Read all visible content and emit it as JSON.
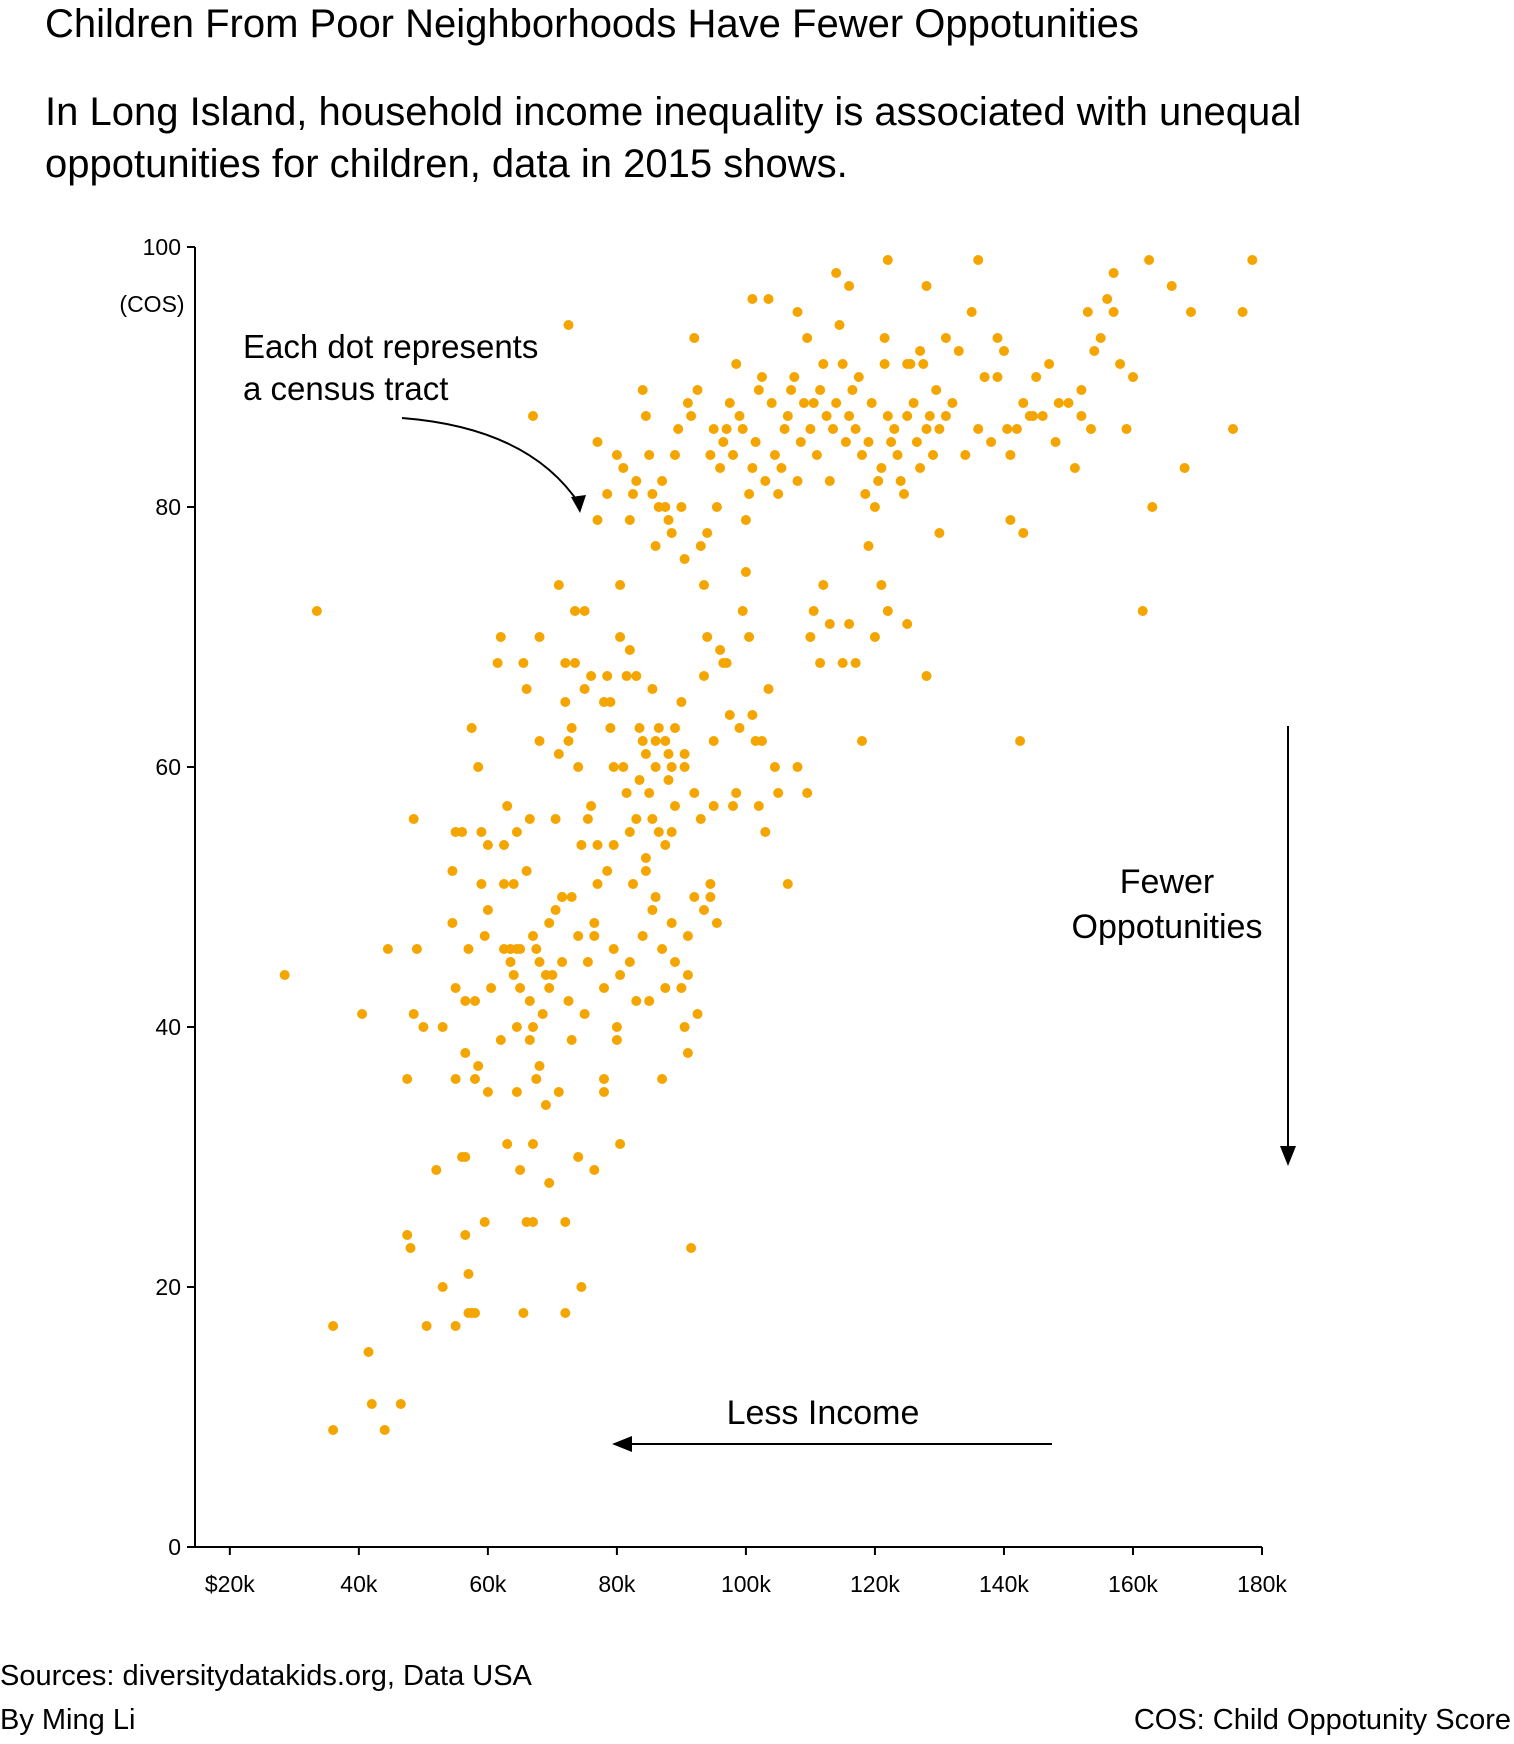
{
  "title": "Children From Poor Neighborhoods Have Fewer Oppotunities",
  "subtitle": "In Long Island, household income inequality is associated with unequal oppotunities for children, data in 2015 shows.",
  "annotations": {
    "dot_note_line1": "Each dot represents",
    "dot_note_line2": "a census tract",
    "fewer_line1": "Fewer",
    "fewer_line2": "Oppotunities",
    "less_income": "Less Income"
  },
  "footer": {
    "sources": "Sources: diversitydatakids.org, Data USA",
    "byline": "By Ming Li",
    "cos_note": "COS: Child Oppotunity Score"
  },
  "colors": {
    "dot": "#F5A500",
    "axis": "#000000"
  },
  "chart_data": {
    "type": "scatter",
    "xlabel": "",
    "ylabel": "(COS)",
    "xlim": [
      14600,
      180000
    ],
    "ylim": [
      0,
      100
    ],
    "xticks": [
      20000,
      40000,
      60000,
      80000,
      100000,
      120000,
      140000,
      160000,
      180000
    ],
    "xtick_labels": [
      "$20k",
      "40k",
      "60k",
      "80k",
      "100k",
      "120k",
      "140k",
      "160k",
      "180k"
    ],
    "yticks": [
      0,
      20,
      40,
      60,
      80,
      100
    ],
    "ytick_labels": [
      "0",
      "20",
      "40",
      "60",
      "80",
      "100"
    ],
    "grid": false,
    "legend": "none",
    "points": [
      [
        28500,
        44
      ],
      [
        33500,
        72
      ],
      [
        36000,
        17
      ],
      [
        36000,
        9
      ],
      [
        40500,
        41
      ],
      [
        41500,
        15
      ],
      [
        42000,
        11
      ],
      [
        44000,
        9
      ],
      [
        44500,
        46
      ],
      [
        46500,
        11
      ],
      [
        47500,
        36
      ],
      [
        47500,
        24
      ],
      [
        48000,
        23
      ],
      [
        48500,
        56
      ],
      [
        49000,
        46
      ],
      [
        50500,
        17
      ],
      [
        52000,
        29
      ],
      [
        53000,
        20
      ],
      [
        53000,
        40
      ],
      [
        54500,
        52
      ],
      [
        54500,
        48
      ],
      [
        55000,
        43
      ],
      [
        55000,
        36
      ],
      [
        55000,
        17
      ],
      [
        56000,
        30
      ],
      [
        56000,
        55
      ],
      [
        56500,
        24
      ],
      [
        56500,
        38
      ],
      [
        56500,
        30
      ],
      [
        57000,
        21
      ],
      [
        57000,
        18
      ],
      [
        57000,
        46
      ],
      [
        57500,
        63
      ],
      [
        57500,
        18
      ],
      [
        58000,
        42
      ],
      [
        58000,
        36
      ],
      [
        58000,
        18
      ],
      [
        58500,
        60
      ],
      [
        58500,
        37
      ],
      [
        59000,
        55
      ],
      [
        59000,
        51
      ],
      [
        59500,
        25
      ],
      [
        59500,
        47
      ],
      [
        60000,
        54
      ],
      [
        60000,
        49
      ],
      [
        60500,
        43
      ],
      [
        61500,
        68
      ],
      [
        62000,
        70
      ],
      [
        62000,
        39
      ],
      [
        62500,
        54
      ],
      [
        62500,
        51
      ],
      [
        63000,
        31
      ],
      [
        63500,
        45
      ],
      [
        63500,
        46
      ],
      [
        64000,
        51
      ],
      [
        64000,
        44
      ],
      [
        64500,
        55
      ],
      [
        64500,
        40
      ],
      [
        64500,
        35
      ],
      [
        64500,
        46
      ],
      [
        65000,
        29
      ],
      [
        65000,
        46
      ],
      [
        65500,
        18
      ],
      [
        65500,
        68
      ],
      [
        66000,
        66
      ],
      [
        66000,
        25
      ],
      [
        66500,
        56
      ],
      [
        66500,
        42
      ],
      [
        66500,
        39
      ],
      [
        67000,
        25
      ],
      [
        67000,
        47
      ],
      [
        67000,
        40
      ],
      [
        67000,
        31
      ],
      [
        67500,
        36
      ],
      [
        67500,
        46
      ],
      [
        68000,
        70
      ],
      [
        68000,
        62
      ],
      [
        68000,
        45
      ],
      [
        68500,
        41
      ],
      [
        69000,
        44
      ],
      [
        69000,
        34
      ],
      [
        69500,
        28
      ],
      [
        69500,
        43
      ],
      [
        70500,
        49
      ],
      [
        70500,
        56
      ],
      [
        71000,
        74
      ],
      [
        71000,
        61
      ],
      [
        71000,
        35
      ],
      [
        71500,
        50
      ],
      [
        71500,
        45
      ],
      [
        72000,
        65
      ],
      [
        72000,
        68
      ],
      [
        72000,
        25
      ],
      [
        72000,
        18
      ],
      [
        72500,
        42
      ],
      [
        72500,
        62
      ],
      [
        73000,
        39
      ],
      [
        73000,
        63
      ],
      [
        73500,
        68
      ],
      [
        73500,
        72
      ],
      [
        74000,
        30
      ],
      [
        74000,
        60
      ],
      [
        74500,
        54
      ],
      [
        74500,
        20
      ],
      [
        75000,
        66
      ],
      [
        75000,
        41
      ],
      [
        75000,
        72
      ],
      [
        75500,
        56
      ],
      [
        76000,
        67
      ],
      [
        76000,
        57
      ],
      [
        76500,
        29
      ],
      [
        76500,
        47
      ],
      [
        77000,
        54
      ],
      [
        77000,
        51
      ],
      [
        78000,
        36
      ],
      [
        78000,
        35
      ],
      [
        78000,
        65
      ],
      [
        78500,
        52
      ],
      [
        78500,
        67
      ],
      [
        79000,
        63
      ],
      [
        79000,
        65
      ],
      [
        79500,
        54
      ],
      [
        79500,
        60
      ],
      [
        80000,
        39
      ],
      [
        80000,
        40
      ],
      [
        80500,
        70
      ],
      [
        80500,
        74
      ],
      [
        80500,
        31
      ],
      [
        81000,
        60
      ],
      [
        81500,
        58
      ],
      [
        81500,
        67
      ],
      [
        82000,
        69
      ],
      [
        82000,
        55
      ],
      [
        82500,
        51
      ],
      [
        83000,
        56
      ],
      [
        83000,
        67
      ],
      [
        83500,
        59
      ],
      [
        83500,
        63
      ],
      [
        84000,
        62
      ],
      [
        84000,
        47
      ],
      [
        84500,
        61
      ],
      [
        84500,
        53
      ],
      [
        85000,
        42
      ],
      [
        85000,
        58
      ],
      [
        85500,
        66
      ],
      [
        85500,
        56
      ],
      [
        86000,
        60
      ],
      [
        86000,
        62
      ],
      [
        86500,
        63
      ],
      [
        86500,
        55
      ],
      [
        87000,
        36
      ],
      [
        87000,
        46
      ],
      [
        87500,
        62
      ],
      [
        87500,
        54
      ],
      [
        88000,
        59
      ],
      [
        88000,
        61
      ],
      [
        88500,
        60
      ],
      [
        88500,
        55
      ],
      [
        89000,
        57
      ],
      [
        89000,
        63
      ],
      [
        90000,
        43
      ],
      [
        90000,
        65
      ],
      [
        90500,
        61
      ],
      [
        90500,
        60
      ],
      [
        91000,
        38
      ],
      [
        91000,
        44
      ],
      [
        91500,
        23
      ],
      [
        92000,
        50
      ],
      [
        92000,
        58
      ],
      [
        93000,
        56
      ],
      [
        93500,
        67
      ],
      [
        94000,
        70
      ],
      [
        94500,
        51
      ],
      [
        94500,
        50
      ],
      [
        95000,
        57
      ],
      [
        95000,
        62
      ],
      [
        96000,
        69
      ],
      [
        96500,
        68
      ],
      [
        97000,
        68
      ],
      [
        97500,
        64
      ],
      [
        98500,
        58
      ],
      [
        98000,
        57
      ],
      [
        99000,
        63
      ],
      [
        99500,
        72
      ],
      [
        100000,
        75
      ],
      [
        100500,
        70
      ],
      [
        101000,
        64
      ],
      [
        101500,
        62
      ],
      [
        102000,
        57
      ],
      [
        102500,
        62
      ],
      [
        103000,
        55
      ],
      [
        103500,
        66
      ],
      [
        104500,
        60
      ],
      [
        105000,
        58
      ],
      [
        106500,
        51
      ],
      [
        108000,
        60
      ],
      [
        110000,
        70
      ],
      [
        109500,
        58
      ],
      [
        110500,
        72
      ],
      [
        111500,
        68
      ],
      [
        112000,
        74
      ],
      [
        113000,
        71
      ],
      [
        115000,
        68
      ],
      [
        116000,
        71
      ],
      [
        117000,
        68
      ],
      [
        118000,
        62
      ],
      [
        119000,
        77
      ],
      [
        120000,
        70
      ],
      [
        121000,
        74
      ],
      [
        122000,
        72
      ],
      [
        125000,
        71
      ],
      [
        128000,
        67
      ],
      [
        130000,
        78
      ],
      [
        142500,
        62
      ],
      [
        143000,
        78
      ],
      [
        141000,
        79
      ],
      [
        161500,
        72
      ],
      [
        163000,
        80
      ],
      [
        48500,
        41
      ],
      [
        50000,
        40
      ],
      [
        72500,
        94
      ],
      [
        67000,
        87
      ],
      [
        77000,
        79
      ],
      [
        77000,
        85
      ],
      [
        78500,
        81
      ],
      [
        80000,
        84
      ],
      [
        81000,
        83
      ],
      [
        82000,
        79
      ],
      [
        82500,
        81
      ],
      [
        83000,
        82
      ],
      [
        84000,
        89
      ],
      [
        84500,
        87
      ],
      [
        85000,
        84
      ],
      [
        85500,
        81
      ],
      [
        86000,
        77
      ],
      [
        86500,
        80
      ],
      [
        87000,
        82
      ],
      [
        87500,
        80
      ],
      [
        88000,
        79
      ],
      [
        88500,
        78
      ],
      [
        89000,
        84
      ],
      [
        89500,
        86
      ],
      [
        90000,
        80
      ],
      [
        90500,
        76
      ],
      [
        91000,
        88
      ],
      [
        91500,
        87
      ],
      [
        92000,
        93
      ],
      [
        92500,
        89
      ],
      [
        93000,
        77
      ],
      [
        93500,
        74
      ],
      [
        94000,
        78
      ],
      [
        94500,
        84
      ],
      [
        95000,
        86
      ],
      [
        95500,
        80
      ],
      [
        96000,
        83
      ],
      [
        96500,
        85
      ],
      [
        97000,
        86
      ],
      [
        97500,
        88
      ],
      [
        98000,
        84
      ],
      [
        98500,
        91
      ],
      [
        99000,
        87
      ],
      [
        99500,
        86
      ],
      [
        100000,
        79
      ],
      [
        100500,
        81
      ],
      [
        101000,
        83
      ],
      [
        101500,
        85
      ],
      [
        102000,
        89
      ],
      [
        102500,
        90
      ],
      [
        103000,
        82
      ],
      [
        103500,
        96
      ],
      [
        104000,
        88
      ],
      [
        104500,
        84
      ],
      [
        105000,
        81
      ],
      [
        105500,
        83
      ],
      [
        106000,
        86
      ],
      [
        106500,
        87
      ],
      [
        107000,
        89
      ],
      [
        107500,
        90
      ],
      [
        108000,
        82
      ],
      [
        108500,
        85
      ],
      [
        109000,
        88
      ],
      [
        109500,
        93
      ],
      [
        110000,
        86
      ],
      [
        110500,
        88
      ],
      [
        111000,
        84
      ],
      [
        111500,
        89
      ],
      [
        112000,
        91
      ],
      [
        112500,
        87
      ],
      [
        113000,
        82
      ],
      [
        113500,
        86
      ],
      [
        114000,
        88
      ],
      [
        114500,
        94
      ],
      [
        115000,
        91
      ],
      [
        115500,
        85
      ],
      [
        116000,
        87
      ],
      [
        116500,
        89
      ],
      [
        117000,
        86
      ],
      [
        117500,
        90
      ],
      [
        118000,
        84
      ],
      [
        118500,
        81
      ],
      [
        119000,
        85
      ],
      [
        119500,
        88
      ],
      [
        120000,
        80
      ],
      [
        120500,
        82
      ],
      [
        121000,
        83
      ],
      [
        121500,
        91
      ],
      [
        122000,
        87
      ],
      [
        122500,
        85
      ],
      [
        123000,
        86
      ],
      [
        123500,
        84
      ],
      [
        124000,
        82
      ],
      [
        124500,
        81
      ],
      [
        125000,
        87
      ],
      [
        125500,
        91
      ],
      [
        126000,
        88
      ],
      [
        126500,
        85
      ],
      [
        127000,
        83
      ],
      [
        127500,
        91
      ],
      [
        128000,
        86
      ],
      [
        128500,
        87
      ],
      [
        129000,
        84
      ],
      [
        129500,
        89
      ],
      [
        130000,
        86
      ],
      [
        131000,
        93
      ],
      [
        132000,
        88
      ],
      [
        134000,
        84
      ],
      [
        135000,
        95
      ],
      [
        136000,
        86
      ],
      [
        137000,
        90
      ],
      [
        138000,
        85
      ],
      [
        139000,
        93
      ],
      [
        140000,
        92
      ],
      [
        141000,
        84
      ],
      [
        142000,
        86
      ],
      [
        143000,
        88
      ],
      [
        144000,
        87
      ],
      [
        145000,
        90
      ],
      [
        146000,
        87
      ],
      [
        147000,
        91
      ],
      [
        148000,
        85
      ],
      [
        150000,
        88
      ],
      [
        151000,
        83
      ],
      [
        152000,
        89
      ],
      [
        153000,
        95
      ],
      [
        154000,
        92
      ],
      [
        155000,
        93
      ],
      [
        156000,
        96
      ],
      [
        157000,
        95
      ],
      [
        158000,
        91
      ],
      [
        159000,
        86
      ],
      [
        160000,
        90
      ],
      [
        162500,
        99
      ],
      [
        166000,
        97
      ],
      [
        168000,
        83
      ],
      [
        169000,
        95
      ],
      [
        175500,
        86
      ],
      [
        177000,
        95
      ],
      [
        178500,
        99
      ],
      [
        122000,
        99
      ],
      [
        116000,
        97
      ],
      [
        114000,
        98
      ],
      [
        108000,
        95
      ],
      [
        101000,
        96
      ],
      [
        128000,
        97
      ],
      [
        136000,
        99
      ],
      [
        157000,
        98
      ],
      [
        121500,
        93
      ],
      [
        125000,
        91
      ],
      [
        127000,
        92
      ],
      [
        131000,
        87
      ],
      [
        133000,
        92
      ],
      [
        139000,
        90
      ],
      [
        140500,
        86
      ],
      [
        144500,
        87
      ],
      [
        148500,
        88
      ],
      [
        152000,
        87
      ],
      [
        153500,
        86
      ],
      [
        55000,
        55
      ],
      [
        56500,
        42
      ],
      [
        60000,
        35
      ],
      [
        62500,
        46
      ],
      [
        65000,
        43
      ],
      [
        68000,
        37
      ],
      [
        70000,
        44
      ],
      [
        73000,
        50
      ],
      [
        75500,
        45
      ],
      [
        78000,
        43
      ],
      [
        80500,
        44
      ],
      [
        83000,
        42
      ],
      [
        85500,
        49
      ],
      [
        87500,
        43
      ],
      [
        89000,
        45
      ],
      [
        90500,
        40
      ],
      [
        92500,
        41
      ],
      [
        63000,
        57
      ],
      [
        66000,
        52
      ],
      [
        69500,
        48
      ],
      [
        71500,
        50
      ],
      [
        74000,
        47
      ],
      [
        76500,
        48
      ],
      [
        79500,
        46
      ],
      [
        82000,
        45
      ],
      [
        84500,
        52
      ],
      [
        86000,
        50
      ],
      [
        88500,
        48
      ],
      [
        91000,
        47
      ],
      [
        93500,
        49
      ],
      [
        95500,
        48
      ]
    ]
  }
}
